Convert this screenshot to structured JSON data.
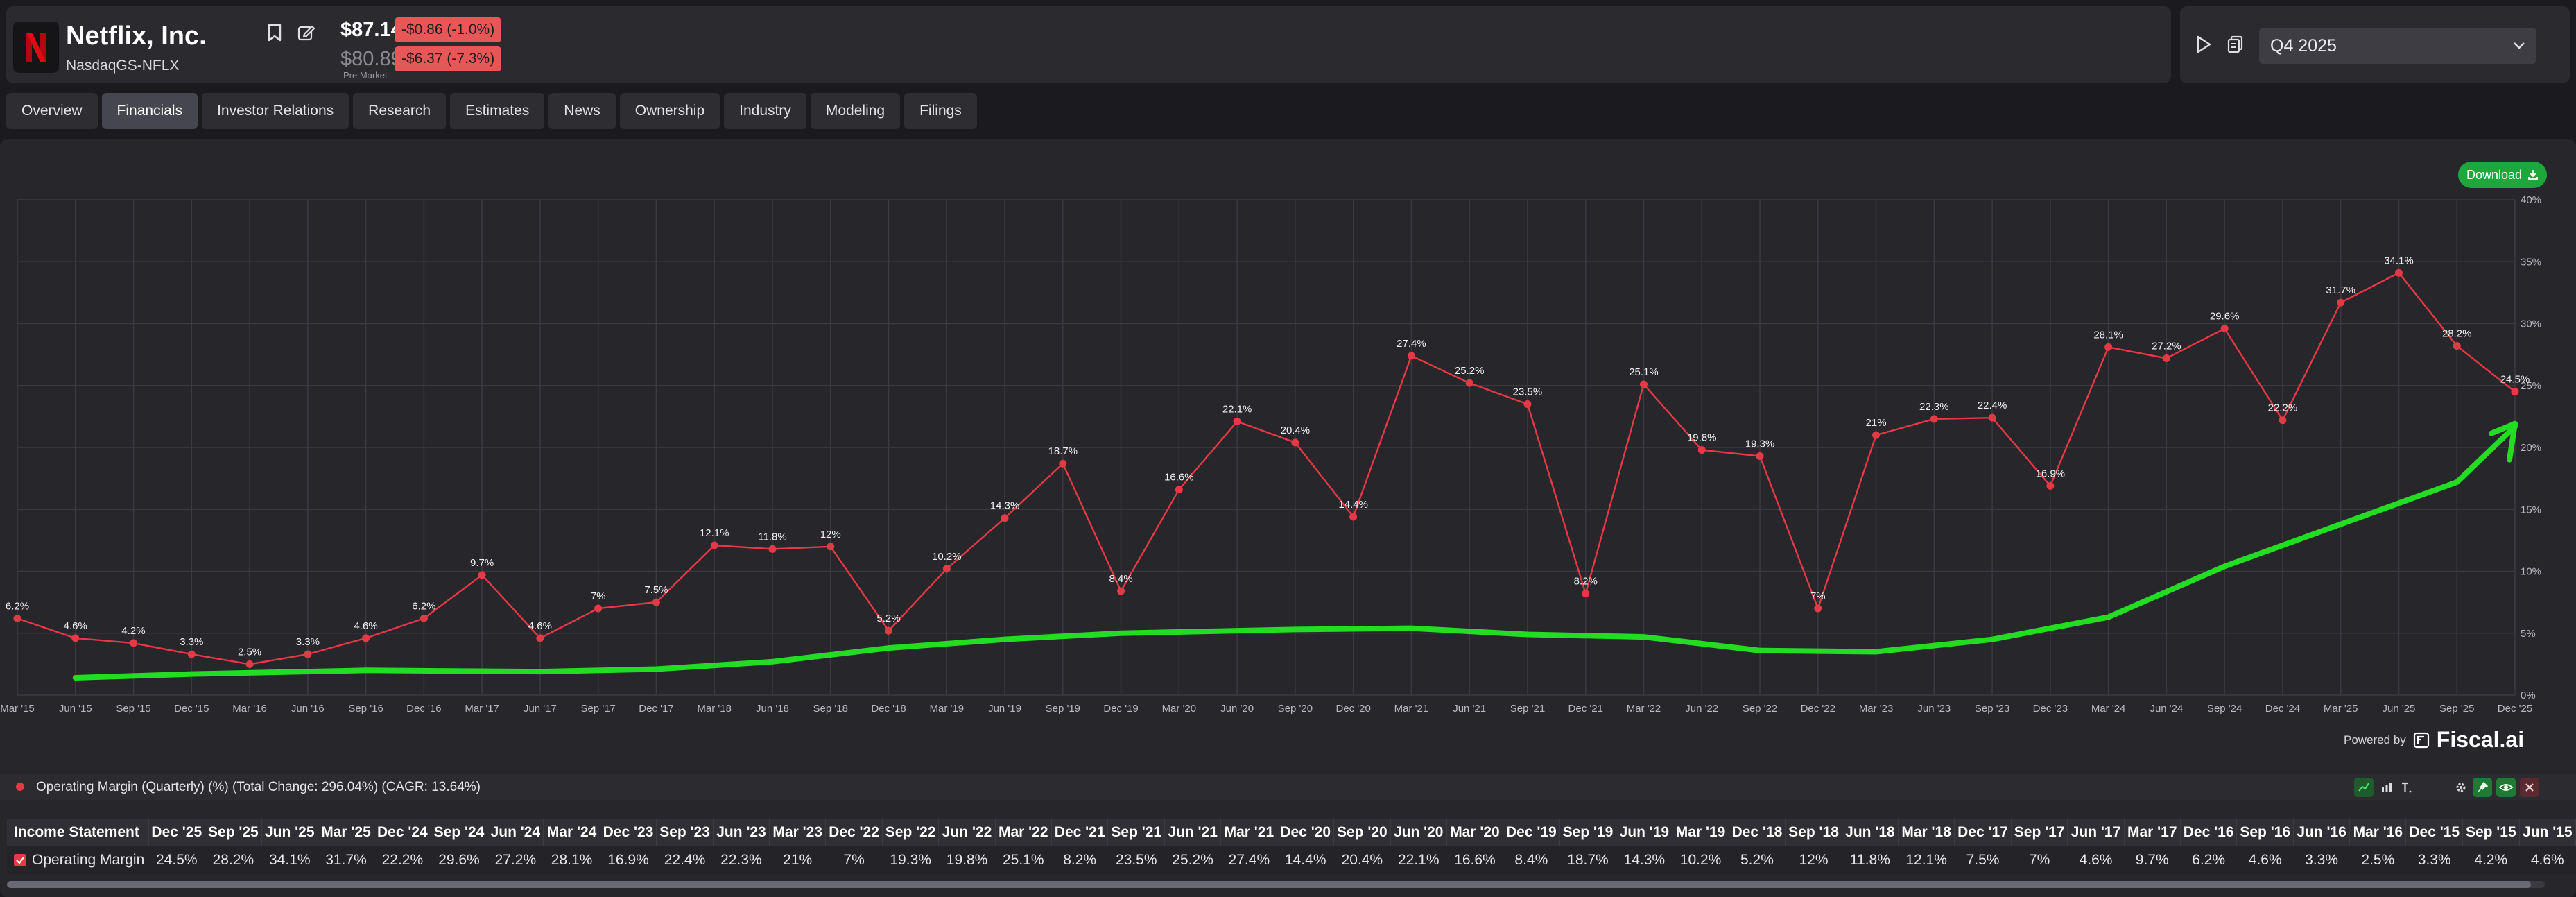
{
  "company": {
    "name": "Netflix, Inc.",
    "ticker": "NasdaqGS-NFLX",
    "logo_letter": "N"
  },
  "quote": {
    "price": "$87.14",
    "change": "-$0.86 (-1.0%)",
    "premarket_price": "$80.89",
    "premarket_change": "-$6.37 (-7.3%)",
    "premarket_label": "Pre Market"
  },
  "period_select": {
    "value": "Q4 2025"
  },
  "tabs": [
    "Overview",
    "Financials",
    "Investor Relations",
    "Research",
    "Estimates",
    "News",
    "Ownership",
    "Industry",
    "Modeling",
    "Filings"
  ],
  "active_tab": "Financials",
  "download_label": "Download",
  "powered_by": {
    "label": "Powered by",
    "brand": "Fiscal.ai"
  },
  "legend_text": "Operating Margin (Quarterly) (%) (Total Change: 296.04%) (CAGR: 13.64%)",
  "colors": {
    "series": "#e63946",
    "annotation": "#22dd22",
    "download": "#1ea83c",
    "badge": "#e85757"
  },
  "chart_data": {
    "type": "line",
    "x": [
      "Mar '15",
      "Jun '15",
      "Sep '15",
      "Dec '15",
      "Mar '16",
      "Jun '16",
      "Sep '16",
      "Dec '16",
      "Mar '17",
      "Jun '17",
      "Sep '17",
      "Dec '17",
      "Mar '18",
      "Jun '18",
      "Sep '18",
      "Dec '18",
      "Mar '19",
      "Jun '19",
      "Sep '19",
      "Dec '19",
      "Mar '20",
      "Jun '20",
      "Sep '20",
      "Dec '20",
      "Mar '21",
      "Jun '21",
      "Sep '21",
      "Dec '21",
      "Mar '22",
      "Jun '22",
      "Sep '22",
      "Dec '22",
      "Mar '23",
      "Jun '23",
      "Sep '23",
      "Dec '23",
      "Mar '24",
      "Jun '24",
      "Sep '24",
      "Dec '24",
      "Mar '25",
      "Jun '25",
      "Sep '25",
      "Dec '25"
    ],
    "series": [
      {
        "values": [
          6.2,
          4.6,
          4.2,
          3.3,
          2.5,
          3.3,
          4.6,
          6.2,
          9.7,
          4.6,
          7,
          7.5,
          12.1,
          11.8,
          12,
          5.2,
          10.2,
          14.3,
          18.7,
          8.4,
          16.6,
          22.1,
          20.4,
          14.4,
          27.4,
          25.2,
          23.5,
          8.2,
          25.1,
          19.8,
          19.3,
          7,
          21,
          22.3,
          22.4,
          16.9,
          28.1,
          27.2,
          29.6,
          22.2,
          31.7,
          34.1,
          28.2,
          24.5
        ],
        "labels": [
          "6.2%",
          "4.6%",
          "4.2%",
          "3.3%",
          "2.5%",
          "3.3%",
          "4.6%",
          "6.2%",
          "9.7%",
          "4.6%",
          "7%",
          "7.5%",
          "12.1%",
          "11.8%",
          "12%",
          "5.2%",
          "10.2%",
          "14.3%",
          "18.7%",
          "8.4%",
          "16.6%",
          "22.1%",
          "20.4%",
          "14.4%",
          "27.4%",
          "25.2%",
          "23.5%",
          "8.2%",
          "25.1%",
          "19.8%",
          "19.3%",
          "7%",
          "21%",
          "22.3%",
          "22.4%",
          "16.9%",
          "28.1%",
          "27.2%",
          "29.6%",
          "22.2%",
          "31.7%",
          "34.1%",
          "28.2%",
          "24.5%"
        ]
      }
    ],
    "y_ticks": [
      "0%",
      "5%",
      "10%",
      "15%",
      "20%",
      "25%",
      "30%",
      "35%",
      "40%"
    ],
    "ylim": [
      0,
      40
    ],
    "grid": true,
    "y_axis_side": "right",
    "annotation_trend": "green hand-drawn upward curve with arrowhead, rising from about 1.5% at Jun '15 to about 22% at Dec '25"
  },
  "table": {
    "header_label": "Income Statement",
    "columns": [
      "Dec '25",
      "Sep '25",
      "Jun '25",
      "Mar '25",
      "Dec '24",
      "Sep '24",
      "Jun '24",
      "Mar '24",
      "Dec '23",
      "Sep '23",
      "Jun '23",
      "Mar '23",
      "Dec '22",
      "Sep '22",
      "Jun '22",
      "Mar '22",
      "Dec '21",
      "Sep '21",
      "Jun '21",
      "Mar '21",
      "Dec '20",
      "Sep '20",
      "Jun '20",
      "Mar '20",
      "Dec '19",
      "Sep '19",
      "Jun '19",
      "Mar '19",
      "Dec '18",
      "Sep '18",
      "Jun '18",
      "Mar '18",
      "Dec '17",
      "Sep '17",
      "Jun '17",
      "Mar '17",
      "Dec '16",
      "Sep '16",
      "Jun '16",
      "Mar '16",
      "Dec '15",
      "Sep '15",
      "Jun '15"
    ],
    "row_label": "Operating Margin",
    "row_values": [
      "24.5%",
      "28.2%",
      "34.1%",
      "31.7%",
      "22.2%",
      "29.6%",
      "27.2%",
      "28.1%",
      "16.9%",
      "22.4%",
      "22.3%",
      "21%",
      "7%",
      "19.3%",
      "19.8%",
      "25.1%",
      "8.2%",
      "23.5%",
      "25.2%",
      "27.4%",
      "14.4%",
      "20.4%",
      "22.1%",
      "16.6%",
      "8.4%",
      "18.7%",
      "14.3%",
      "10.2%",
      "5.2%",
      "12%",
      "11.8%",
      "12.1%",
      "7.5%",
      "7%",
      "4.6%",
      "9.7%",
      "6.2%",
      "4.6%",
      "3.3%",
      "2.5%",
      "3.3%",
      "4.2%",
      "4.6%"
    ]
  }
}
